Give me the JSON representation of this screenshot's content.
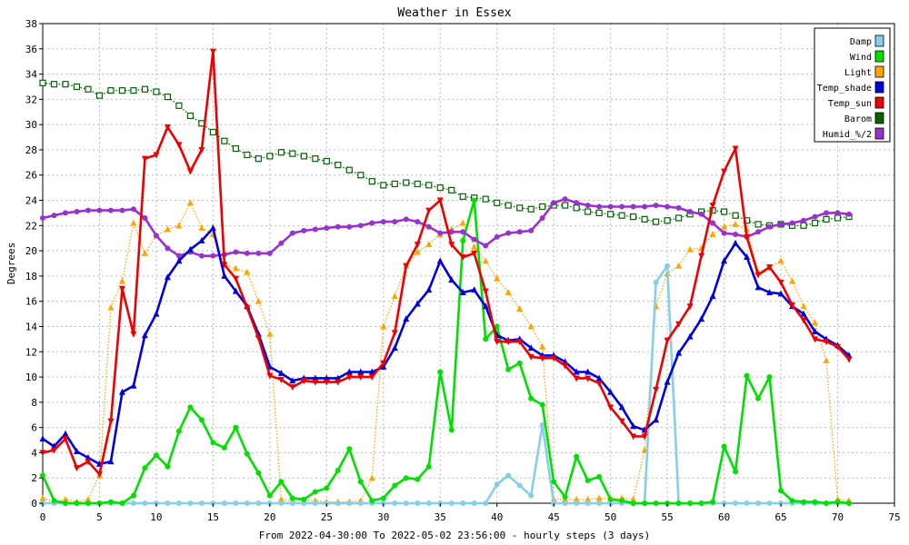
{
  "chart_data": {
    "type": "line",
    "title": "Weather in Essex",
    "xlabel": "From 2022-04-30:00 To 2022-05-02 23:56:00 - hourly steps (3 days)",
    "ylabel": "Degrees",
    "xlim": [
      0,
      75
    ],
    "ylim": [
      0,
      38
    ],
    "x_ticks": [
      "0",
      "5",
      "10",
      "15",
      "20",
      "25",
      "30",
      "35",
      "40",
      "45",
      "50",
      "55",
      "60",
      "65",
      "70",
      "75"
    ],
    "y_ticks": [
      "0",
      "2",
      "4",
      "6",
      "8",
      "10",
      "12",
      "14",
      "16",
      "18",
      "20",
      "22",
      "24",
      "26",
      "28",
      "30",
      "32",
      "34",
      "36",
      "38"
    ],
    "grid": true,
    "legend_position": "top-right",
    "x": [
      0,
      1,
      2,
      3,
      4,
      5,
      6,
      7,
      8,
      9,
      10,
      11,
      12,
      13,
      14,
      15,
      16,
      17,
      18,
      19,
      20,
      21,
      22,
      23,
      24,
      25,
      26,
      27,
      28,
      29,
      30,
      31,
      32,
      33,
      34,
      35,
      36,
      37,
      38,
      39,
      40,
      41,
      42,
      43,
      44,
      45,
      46,
      47,
      48,
      49,
      50,
      51,
      52,
      53,
      54,
      55,
      56,
      57,
      58,
      59,
      60,
      61,
      62,
      63,
      64,
      65,
      66,
      67,
      68,
      69,
      70,
      71
    ],
    "series": [
      {
        "name": "Damp",
        "color": "#87ceeb",
        "marker": "circle",
        "style": "solid",
        "values": [
          0,
          0,
          0,
          0,
          0,
          0,
          0,
          0,
          0,
          0,
          0,
          0,
          0,
          0,
          0,
          0,
          0,
          0,
          0,
          0,
          0,
          0,
          0,
          0,
          0,
          0,
          0,
          0,
          0,
          0,
          0,
          0,
          0,
          0,
          0,
          0,
          0,
          0,
          0,
          0,
          1.5,
          2.2,
          1.4,
          0.6,
          6.2,
          0,
          0,
          0,
          0,
          0,
          0,
          0,
          0,
          0,
          17.5,
          18.8,
          0,
          0,
          0,
          0,
          0,
          0,
          0,
          0,
          0,
          0,
          0,
          0,
          0,
          0,
          0,
          0
        ]
      },
      {
        "name": "Wind",
        "color": "#00e000",
        "marker": "circle",
        "style": "solid",
        "values": [
          2.2,
          0.2,
          0,
          0,
          0,
          0,
          0.1,
          0,
          0.6,
          2.8,
          3.8,
          2.9,
          5.7,
          7.6,
          6.6,
          4.8,
          4.4,
          6,
          3.9,
          2.4,
          0.6,
          1.7,
          0.4,
          0.3,
          0.9,
          1.2,
          2.6,
          4.3,
          1.7,
          0.2,
          0.4,
          1.4,
          2,
          1.9,
          2.9,
          10.4,
          5.8,
          20.8,
          24,
          13,
          14,
          10.6,
          11.1,
          8.3,
          7.8,
          1.7,
          0.5,
          3.7,
          1.8,
          2.1,
          0.3,
          0.2,
          0,
          0,
          0,
          0,
          0,
          0,
          0,
          0.1,
          4.5,
          2.5,
          10.1,
          8.3,
          10,
          1,
          0.2,
          0.1,
          0.1,
          0,
          0.1,
          0
        ]
      },
      {
        "name": "Light",
        "color": "#ffa500",
        "marker": "triangle",
        "style": "dotted",
        "values": [
          0.4,
          0.1,
          0.3,
          0.1,
          0.3,
          2.2,
          15.5,
          17.6,
          22.2,
          19.8,
          21.2,
          21.7,
          22,
          23.8,
          21.8,
          21.3,
          18.9,
          18.6,
          18.3,
          16,
          13.4,
          0.3,
          0.2,
          0.2,
          0.2,
          0.1,
          0.1,
          0.1,
          0.2,
          2,
          14,
          16.4,
          18.8,
          19.9,
          20.5,
          21.3,
          21.7,
          22.2,
          20.3,
          19.2,
          17.8,
          16.7,
          15.4,
          14,
          12.4,
          0.3,
          0.3,
          0.3,
          0.3,
          0.4,
          0.4,
          0.4,
          0.3,
          4.2,
          15.6,
          18.2,
          18.8,
          20.1,
          20.2,
          21.3,
          21.9,
          22.1,
          21.7,
          18.3,
          18.7,
          19.2,
          17.6,
          15.6,
          14.3,
          11.3,
          0.3,
          0.2
        ]
      },
      {
        "name": "Temp_shade",
        "color": "#0000dd",
        "marker": "triangle",
        "style": "solid",
        "values": [
          5.1,
          4.5,
          5.5,
          4.1,
          3.6,
          3.1,
          3.3,
          8.8,
          9.3,
          13.3,
          15,
          17.9,
          19.2,
          20.1,
          20.8,
          21.8,
          18,
          16.8,
          15.6,
          13.4,
          10.8,
          10.3,
          9.7,
          9.9,
          9.9,
          9.9,
          9.9,
          10.4,
          10.4,
          10.4,
          10.8,
          12.3,
          14.6,
          15.8,
          16.9,
          19.2,
          17.7,
          16.7,
          16.9,
          15.6,
          13.3,
          12.9,
          13,
          12.3,
          11.7,
          11.7,
          11.2,
          10.4,
          10.4,
          9.9,
          8.8,
          7.6,
          6.1,
          5.8,
          6.6,
          9.6,
          11.9,
          13.2,
          14.6,
          16.4,
          19.2,
          20.6,
          19.5,
          17.1,
          16.7,
          16.6,
          15.6,
          15,
          13.6,
          13,
          12.5,
          11.7
        ]
      },
      {
        "name": "Temp_sun",
        "color": "#ee0000",
        "marker": "triangle-down",
        "style": "solid",
        "values": [
          4,
          4.2,
          5.1,
          2.8,
          3.3,
          2.3,
          6.5,
          17,
          13.4,
          27.3,
          27.6,
          29.8,
          28.4,
          26.3,
          28,
          35.8,
          18.9,
          17.8,
          15.5,
          13.1,
          10.1,
          9.8,
          9.2,
          9.7,
          9.6,
          9.6,
          9.6,
          10,
          10,
          10,
          11.1,
          13.5,
          18.8,
          20.5,
          23.2,
          24,
          20.5,
          19.5,
          19.8,
          16.8,
          12.8,
          12.8,
          12.8,
          11.6,
          11.5,
          11.5,
          10.9,
          9.9,
          9.9,
          9.5,
          7.6,
          6.5,
          5.3,
          5.3,
          9,
          12.9,
          14.2,
          15.6,
          19.6,
          23.6,
          26.3,
          28.1,
          21.1,
          18.1,
          18.7,
          17.5,
          15.7,
          14.5,
          13,
          12.8,
          12.4,
          11.4
        ]
      },
      {
        "name": "Barom",
        "color": "#006400",
        "marker": "square-hollow",
        "style": "dotted",
        "values": [
          33.3,
          33.2,
          33.2,
          33,
          32.8,
          32.3,
          32.7,
          32.7,
          32.7,
          32.8,
          32.6,
          32.2,
          31.5,
          30.7,
          30.1,
          29.4,
          28.7,
          28.1,
          27.6,
          27.3,
          27.5,
          27.8,
          27.7,
          27.5,
          27.3,
          27.1,
          26.8,
          26.4,
          26,
          25.5,
          25.2,
          25.3,
          25.4,
          25.3,
          25.2,
          25,
          24.8,
          24.3,
          24.2,
          24.1,
          23.8,
          23.6,
          23.4,
          23.3,
          23.5,
          23.6,
          23.6,
          23.4,
          23.1,
          23,
          22.9,
          22.8,
          22.7,
          22.5,
          22.3,
          22.4,
          22.6,
          22.9,
          23.1,
          23.2,
          23.1,
          22.8,
          22.4,
          22.1,
          22,
          22.1,
          22,
          22,
          22.2,
          22.5,
          22.6,
          22.7
        ]
      },
      {
        "name": "Humid_%/2",
        "color": "#9932cc",
        "marker": "circle",
        "style": "solid",
        "values": [
          22.6,
          22.8,
          23,
          23.1,
          23.2,
          23.2,
          23.2,
          23.2,
          23.3,
          22.6,
          21.2,
          20.2,
          19.6,
          19.9,
          19.6,
          19.6,
          19.7,
          19.9,
          19.8,
          19.8,
          19.8,
          20.6,
          21.4,
          21.6,
          21.7,
          21.8,
          21.9,
          21.9,
          22,
          22.2,
          22.3,
          22.3,
          22.5,
          22.3,
          21.9,
          21.4,
          21.5,
          21.5,
          20.9,
          20.4,
          21.1,
          21.4,
          21.5,
          21.6,
          22.6,
          23.8,
          24.1,
          23.8,
          23.6,
          23.5,
          23.5,
          23.5,
          23.5,
          23.5,
          23.6,
          23.5,
          23.4,
          23.1,
          22.9,
          22.2,
          21.4,
          21.3,
          21.1,
          21.5,
          21.9,
          22.1,
          22.2,
          22.4,
          22.7,
          23,
          23,
          22.9
        ]
      }
    ]
  }
}
